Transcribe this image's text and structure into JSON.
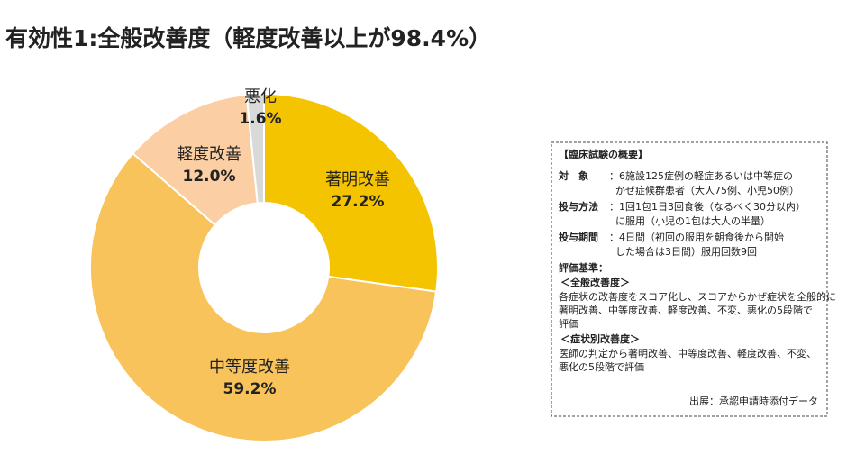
{
  "chart_data": {
    "type": "donut",
    "title": "有効性1:全般改善度（軽度改善以上が98.4%）",
    "categories": [
      "著明改善",
      "中等度改善",
      "軽度改善",
      "悪化"
    ],
    "values": [
      27.2,
      59.2,
      12.0,
      1.6
    ],
    "value_labels": [
      "27.2%",
      "59.2%",
      "12.0%",
      "1.6%"
    ],
    "colors": [
      "#f5c400",
      "#f8c35a",
      "#fbcfa3",
      "#d9d9d9"
    ]
  },
  "note": {
    "title": "【臨床試験の概要】",
    "rows": [
      {
        "label": "対　象",
        "lines": [
          "：6施設125症例の軽症あるいは中等症の",
          "かぜ症候群患者（大人75例、小児50例）"
        ]
      },
      {
        "label": "投与方法",
        "lines": [
          "：1回1包1日3回食後（なるべく30分以内）",
          "に服用（小児の1包は大人の半量）"
        ]
      },
      {
        "label": "投与期間",
        "lines": [
          "：4日間（初回の服用を朝食後から開始",
          "した場合は3日間）服用回数9回"
        ]
      }
    ],
    "criteria": "評価基準：",
    "sections": [
      {
        "heading": "＜全般改善度＞",
        "lines": [
          "各症状の改善度をスコア化し、スコアからかぜ症状を全般的に",
          "著明改善、中等度改善、軽度改善、不変、悪化の5段階で",
          "評価"
        ]
      },
      {
        "heading": "＜症状別改善度＞",
        "lines": [
          "医師の判定から著明改善、中等度改善、軽度改善、不変、",
          "悪化の5段階で評価"
        ]
      }
    ],
    "source": "出展：承認申請時添付データ"
  }
}
